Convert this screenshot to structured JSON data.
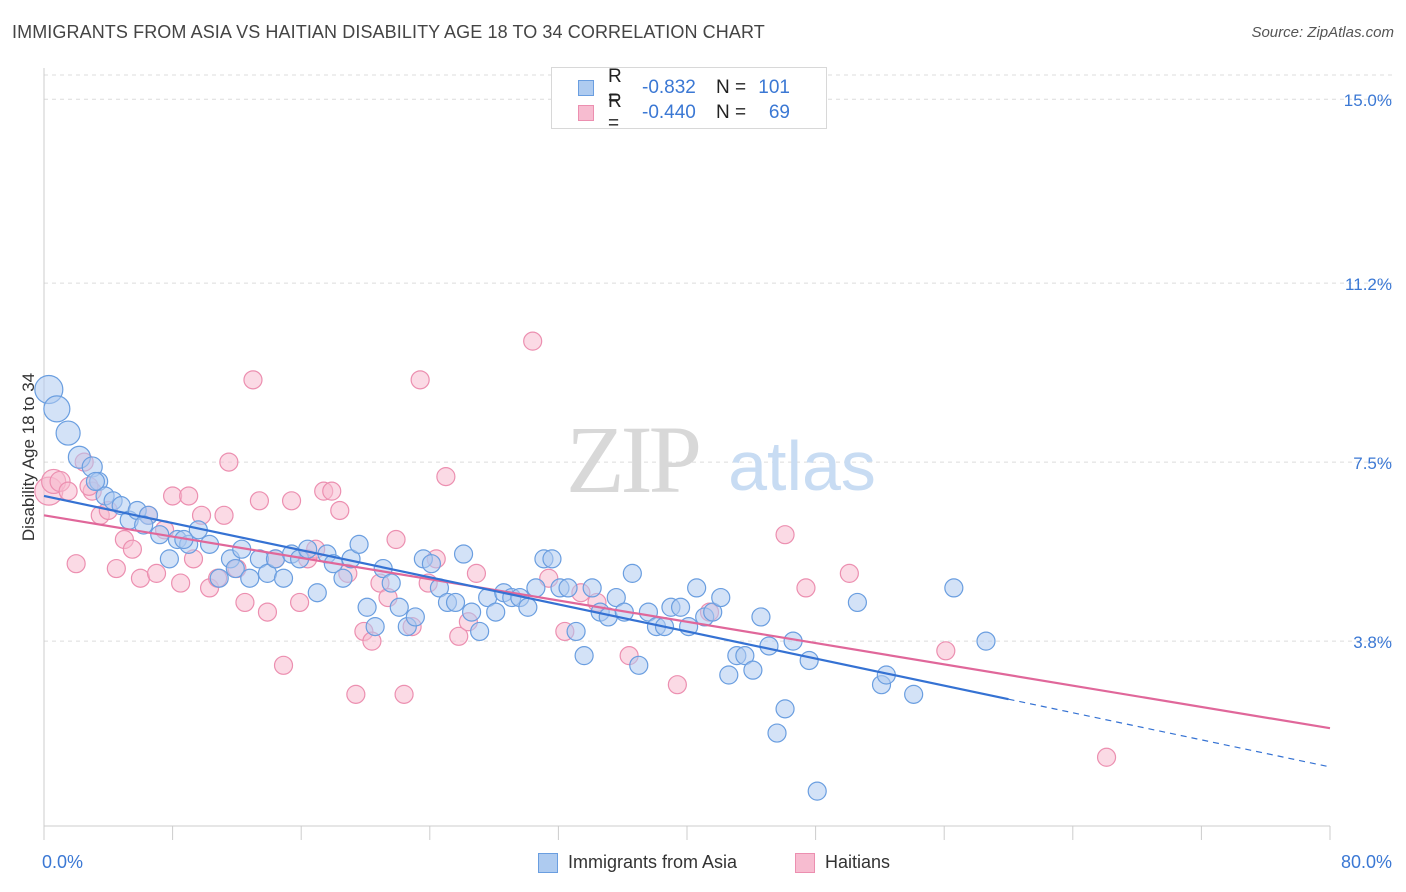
{
  "title": "IMMIGRANTS FROM ASIA VS HAITIAN DISABILITY AGE 18 TO 34 CORRELATION CHART",
  "source": "Source: ZipAtlas.com",
  "watermark": {
    "zip": "ZIP",
    "atlas": "atlas"
  },
  "legend_top": {
    "rows": [
      {
        "r_label": "R =",
        "r_value": "-0.832",
        "n_label": "N =",
        "n_value": "101"
      },
      {
        "r_label": "R =",
        "r_value": "-0.440",
        "n_label": "N =",
        "n_value": "69"
      }
    ]
  },
  "legend_bottom": {
    "series_a": "Immigrants from Asia",
    "series_b": "Haitians"
  },
  "x_axis": {
    "min_label": "0.0%",
    "max_label": "80.0%"
  },
  "colors": {
    "blue_fill": "#aecbf0",
    "blue_stroke": "#6a9ee0",
    "blue_line": "#3572d3",
    "pink_fill": "#f7bcd0",
    "pink_stroke": "#ec8fb0",
    "pink_line": "#e0679a",
    "grid": "#dcdcdc",
    "tick_label": "#3b78d4"
  },
  "chart_data": {
    "type": "scatter",
    "title": "IMMIGRANTS FROM ASIA VS HAITIAN DISABILITY AGE 18 TO 34 CORRELATION CHART",
    "xlabel": "",
    "ylabel": "Disability Age 18 to 34",
    "xlim": [
      0,
      80
    ],
    "ylim": [
      0,
      15.5
    ],
    "y_ticks": [
      3.8,
      7.5,
      11.2,
      15.0
    ],
    "y_tick_labels": [
      "3.8%",
      "7.5%",
      "11.2%",
      "15.0%"
    ],
    "grid": true,
    "series": [
      {
        "name": "Immigrants from Asia",
        "r": -0.832,
        "n": 101,
        "trend": {
          "x0": 0,
          "y0": 6.8,
          "x1": 60,
          "y1": 2.6,
          "dash_to_x": 80,
          "dash_to_y": 1.2
        },
        "points": [
          [
            0.3,
            9.0,
            14
          ],
          [
            0.8,
            8.6,
            13
          ],
          [
            1.5,
            8.1,
            12
          ],
          [
            2.2,
            7.6,
            11
          ],
          [
            3.0,
            7.4,
            10
          ],
          [
            3.4,
            7.1,
            9
          ],
          [
            3.8,
            6.8,
            9
          ],
          [
            4.3,
            6.7,
            9
          ],
          [
            4.8,
            6.6,
            9
          ],
          [
            5.3,
            6.3,
            9
          ],
          [
            5.8,
            6.5,
            9
          ],
          [
            6.5,
            6.4,
            9
          ],
          [
            7.2,
            6.0,
            9
          ],
          [
            7.8,
            5.5,
            9
          ],
          [
            8.3,
            5.9,
            9
          ],
          [
            9.0,
            5.8,
            9
          ],
          [
            9.6,
            6.1,
            9
          ],
          [
            10.3,
            5.8,
            9
          ],
          [
            10.9,
            5.1,
            9
          ],
          [
            11.6,
            5.5,
            9
          ],
          [
            11.9,
            5.3,
            9
          ],
          [
            12.3,
            5.7,
            9
          ],
          [
            12.8,
            5.1,
            9
          ],
          [
            13.4,
            5.5,
            9
          ],
          [
            13.9,
            5.2,
            9
          ],
          [
            14.4,
            5.5,
            9
          ],
          [
            14.9,
            5.1,
            9
          ],
          [
            15.4,
            5.6,
            9
          ],
          [
            15.9,
            5.5,
            9
          ],
          [
            16.4,
            5.7,
            9
          ],
          [
            17.0,
            4.8,
            9
          ],
          [
            17.6,
            5.6,
            9
          ],
          [
            18.0,
            5.4,
            9
          ],
          [
            18.6,
            5.1,
            9
          ],
          [
            19.1,
            5.5,
            9
          ],
          [
            19.6,
            5.8,
            9
          ],
          [
            20.1,
            4.5,
            9
          ],
          [
            20.6,
            4.1,
            9
          ],
          [
            21.1,
            5.3,
            9
          ],
          [
            21.6,
            5.0,
            9
          ],
          [
            22.1,
            4.5,
            9
          ],
          [
            22.6,
            4.1,
            9
          ],
          [
            23.1,
            4.3,
            9
          ],
          [
            23.6,
            5.5,
            9
          ],
          [
            24.1,
            5.4,
            9
          ],
          [
            24.6,
            4.9,
            9
          ],
          [
            25.1,
            4.6,
            9
          ],
          [
            25.6,
            4.6,
            9
          ],
          [
            26.1,
            5.6,
            9
          ],
          [
            26.6,
            4.4,
            9
          ],
          [
            27.1,
            4.0,
            9
          ],
          [
            27.6,
            4.7,
            9
          ],
          [
            28.1,
            4.4,
            9
          ],
          [
            28.6,
            4.8,
            9
          ],
          [
            29.1,
            4.7,
            9
          ],
          [
            29.6,
            4.7,
            9
          ],
          [
            30.1,
            4.5,
            9
          ],
          [
            30.6,
            4.9,
            9
          ],
          [
            31.1,
            5.5,
            9
          ],
          [
            31.6,
            5.5,
            9
          ],
          [
            32.1,
            4.9,
            9
          ],
          [
            32.6,
            4.9,
            9
          ],
          [
            33.1,
            4.0,
            9
          ],
          [
            33.6,
            3.5,
            9
          ],
          [
            34.1,
            4.9,
            9
          ],
          [
            34.6,
            4.4,
            9
          ],
          [
            35.1,
            4.3,
            9
          ],
          [
            35.6,
            4.7,
            9
          ],
          [
            36.1,
            4.4,
            9
          ],
          [
            36.6,
            5.2,
            9
          ],
          [
            37.0,
            3.3,
            9
          ],
          [
            37.6,
            4.4,
            9
          ],
          [
            38.1,
            4.1,
            9
          ],
          [
            38.6,
            4.1,
            9
          ],
          [
            39.0,
            4.5,
            9
          ],
          [
            39.6,
            4.5,
            9
          ],
          [
            40.1,
            4.1,
            9
          ],
          [
            40.6,
            4.9,
            9
          ],
          [
            41.1,
            4.3,
            9
          ],
          [
            41.6,
            4.4,
            9
          ],
          [
            42.1,
            4.7,
            9
          ],
          [
            42.6,
            3.1,
            9
          ],
          [
            43.1,
            3.5,
            9
          ],
          [
            43.6,
            3.5,
            9
          ],
          [
            44.1,
            3.2,
            9
          ],
          [
            44.6,
            4.3,
            9
          ],
          [
            45.1,
            3.7,
            9
          ],
          [
            45.6,
            1.9,
            9
          ],
          [
            46.1,
            2.4,
            9
          ],
          [
            46.6,
            3.8,
            9
          ],
          [
            47.6,
            3.4,
            9
          ],
          [
            48.1,
            0.7,
            9
          ],
          [
            50.6,
            4.6,
            9
          ],
          [
            52.1,
            2.9,
            9
          ],
          [
            52.4,
            3.1,
            9
          ],
          [
            54.1,
            2.7,
            9
          ],
          [
            56.6,
            4.9,
            9
          ],
          [
            58.6,
            3.8,
            9
          ],
          [
            3.2,
            7.1,
            9
          ],
          [
            6.2,
            6.2,
            9
          ],
          [
            8.7,
            5.9,
            9
          ]
        ]
      },
      {
        "name": "Haitians",
        "r": -0.44,
        "n": 69,
        "trend": {
          "x0": 0,
          "y0": 6.4,
          "x1": 80,
          "y1": 2.0
        },
        "points": [
          [
            0.3,
            6.9,
            14
          ],
          [
            0.6,
            7.1,
            12
          ],
          [
            1.0,
            7.1,
            10
          ],
          [
            1.5,
            6.9,
            9
          ],
          [
            2.0,
            5.4,
            9
          ],
          [
            2.5,
            7.5,
            9
          ],
          [
            3.0,
            6.9,
            9
          ],
          [
            3.5,
            6.4,
            9
          ],
          [
            4.0,
            6.5,
            9
          ],
          [
            4.5,
            5.3,
            9
          ],
          [
            5.0,
            5.9,
            9
          ],
          [
            5.5,
            5.7,
            9
          ],
          [
            6.0,
            5.1,
            9
          ],
          [
            6.5,
            6.4,
            9
          ],
          [
            7.0,
            5.2,
            9
          ],
          [
            7.5,
            6.1,
            9
          ],
          [
            8.0,
            6.8,
            9
          ],
          [
            8.5,
            5.0,
            9
          ],
          [
            9.0,
            6.8,
            9
          ],
          [
            9.3,
            5.5,
            9
          ],
          [
            9.8,
            6.4,
            9
          ],
          [
            10.3,
            4.9,
            9
          ],
          [
            10.8,
            5.1,
            9
          ],
          [
            11.2,
            6.4,
            9
          ],
          [
            11.5,
            7.5,
            9
          ],
          [
            12.0,
            5.3,
            9
          ],
          [
            12.5,
            4.6,
            9
          ],
          [
            13.0,
            9.2,
            9
          ],
          [
            13.4,
            6.7,
            9
          ],
          [
            13.9,
            4.4,
            9
          ],
          [
            14.4,
            5.5,
            9
          ],
          [
            14.9,
            3.3,
            9
          ],
          [
            15.4,
            6.7,
            9
          ],
          [
            15.9,
            4.6,
            9
          ],
          [
            16.4,
            5.5,
            9
          ],
          [
            16.9,
            5.7,
            9
          ],
          [
            17.4,
            6.9,
            9
          ],
          [
            17.9,
            6.9,
            9
          ],
          [
            18.4,
            6.5,
            9
          ],
          [
            18.9,
            5.2,
            9
          ],
          [
            19.4,
            2.7,
            9
          ],
          [
            19.9,
            4.0,
            9
          ],
          [
            20.4,
            3.8,
            9
          ],
          [
            20.9,
            5.0,
            9
          ],
          [
            21.4,
            4.7,
            9
          ],
          [
            21.9,
            5.9,
            9
          ],
          [
            22.4,
            2.7,
            9
          ],
          [
            22.9,
            4.1,
            9
          ],
          [
            23.4,
            9.2,
            9
          ],
          [
            23.9,
            5.0,
            9
          ],
          [
            24.4,
            5.5,
            9
          ],
          [
            25.0,
            7.2,
            9
          ],
          [
            25.8,
            3.9,
            9
          ],
          [
            26.4,
            4.2,
            9
          ],
          [
            26.9,
            5.2,
            9
          ],
          [
            30.4,
            10.0,
            9
          ],
          [
            31.4,
            5.1,
            9
          ],
          [
            32.4,
            4.0,
            9
          ],
          [
            33.4,
            4.8,
            9
          ],
          [
            34.4,
            4.6,
            9
          ],
          [
            36.4,
            3.5,
            9
          ],
          [
            39.4,
            2.9,
            9
          ],
          [
            41.4,
            4.4,
            9
          ],
          [
            46.1,
            6.0,
            9
          ],
          [
            47.4,
            4.9,
            9
          ],
          [
            50.1,
            5.2,
            9
          ],
          [
            56.1,
            3.6,
            9
          ],
          [
            66.1,
            1.4,
            9
          ],
          [
            2.8,
            7.0,
            9
          ]
        ]
      }
    ]
  }
}
